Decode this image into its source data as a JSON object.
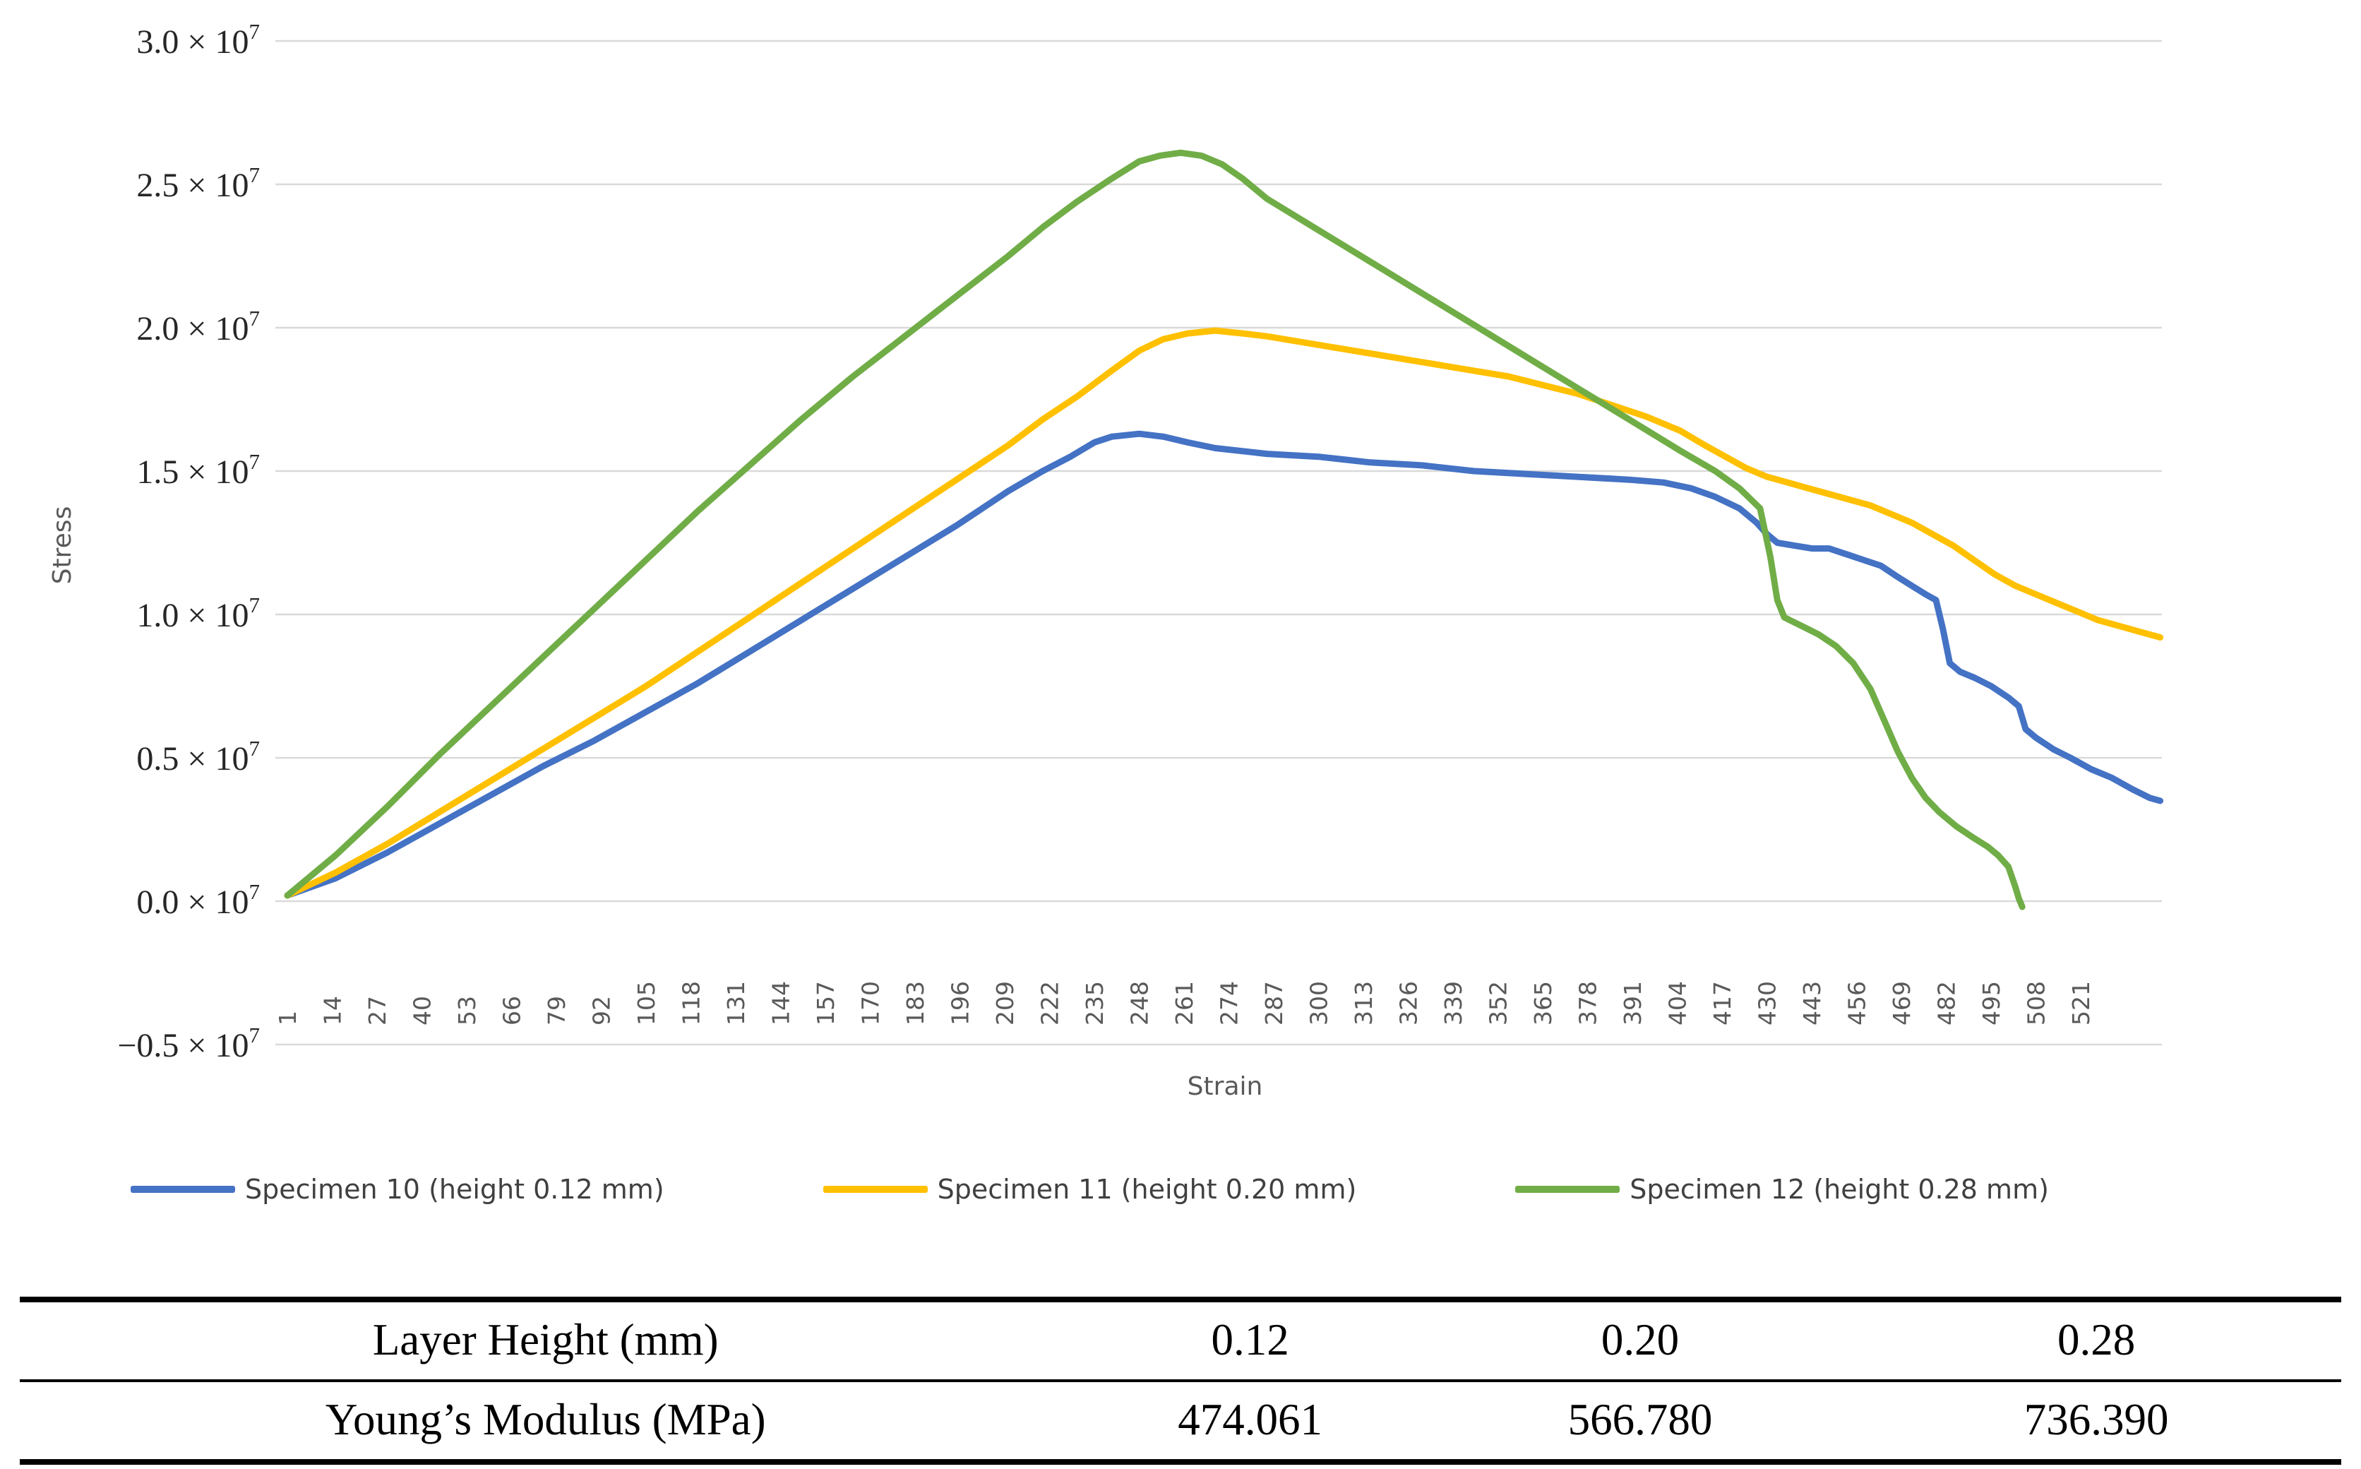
{
  "chart_data": {
    "type": "line",
    "title": "",
    "xlabel": "Strain",
    "ylabel": "Stress",
    "grid": true,
    "legend_position": "bottom",
    "y_unit_suffix": " × 10",
    "y_unit_exponent": "7",
    "ylim_e7": [
      -0.5,
      3.0
    ],
    "y_ticks": [
      {
        "label": "3.0",
        "value": 3.0
      },
      {
        "label": "2.5",
        "value": 2.5
      },
      {
        "label": "2.0",
        "value": 2.0
      },
      {
        "label": "1.5",
        "value": 1.5
      },
      {
        "label": "1.0",
        "value": 1.0
      },
      {
        "label": "0.5",
        "value": 0.5
      },
      {
        "label": "0.0",
        "value": 0.0
      },
      {
        "label": "−0.5",
        "value": -0.5
      }
    ],
    "x_tick_labels": [
      1,
      14,
      27,
      40,
      53,
      66,
      79,
      92,
      105,
      118,
      131,
      144,
      157,
      170,
      183,
      196,
      209,
      222,
      235,
      248,
      261,
      274,
      287,
      300,
      313,
      326,
      339,
      352,
      365,
      378,
      391,
      404,
      417,
      430,
      443,
      456,
      469,
      482,
      495,
      508,
      521
    ],
    "x_tick_step": 13,
    "x_max_category": 544,
    "grid_color": "#d9d9d9",
    "series": [
      {
        "name": "Specimen 10 (height 0.12 mm)",
        "color": "#4472C4",
        "points_e7": [
          [
            1,
            0.02
          ],
          [
            15,
            0.08
          ],
          [
            30,
            0.17
          ],
          [
            45,
            0.27
          ],
          [
            60,
            0.37
          ],
          [
            75,
            0.47
          ],
          [
            90,
            0.56
          ],
          [
            105,
            0.66
          ],
          [
            120,
            0.76
          ],
          [
            135,
            0.87
          ],
          [
            150,
            0.98
          ],
          [
            165,
            1.09
          ],
          [
            180,
            1.2
          ],
          [
            195,
            1.31
          ],
          [
            210,
            1.43
          ],
          [
            220,
            1.5
          ],
          [
            228,
            1.55
          ],
          [
            235,
            1.6
          ],
          [
            240,
            1.62
          ],
          [
            248,
            1.63
          ],
          [
            255,
            1.62
          ],
          [
            262,
            1.6
          ],
          [
            270,
            1.58
          ],
          [
            285,
            1.56
          ],
          [
            300,
            1.55
          ],
          [
            315,
            1.53
          ],
          [
            330,
            1.52
          ],
          [
            345,
            1.5
          ],
          [
            360,
            1.49
          ],
          [
            375,
            1.48
          ],
          [
            390,
            1.47
          ],
          [
            400,
            1.46
          ],
          [
            408,
            1.44
          ],
          [
            415,
            1.41
          ],
          [
            422,
            1.37
          ],
          [
            427,
            1.32
          ],
          [
            430,
            1.28
          ],
          [
            433,
            1.25
          ],
          [
            438,
            1.24
          ],
          [
            443,
            1.23
          ],
          [
            448,
            1.23
          ],
          [
            453,
            1.21
          ],
          [
            458,
            1.19
          ],
          [
            463,
            1.17
          ],
          [
            468,
            1.13
          ],
          [
            472,
            1.1
          ],
          [
            476,
            1.07
          ],
          [
            479,
            1.05
          ],
          [
            481,
            0.95
          ],
          [
            483,
            0.83
          ],
          [
            486,
            0.8
          ],
          [
            490,
            0.78
          ],
          [
            495,
            0.75
          ],
          [
            500,
            0.71
          ],
          [
            503,
            0.68
          ],
          [
            505,
            0.6
          ],
          [
            508,
            0.57
          ],
          [
            513,
            0.53
          ],
          [
            518,
            0.5
          ],
          [
            524,
            0.46
          ],
          [
            530,
            0.43
          ],
          [
            536,
            0.39
          ],
          [
            541,
            0.36
          ],
          [
            544,
            0.35
          ]
        ]
      },
      {
        "name": "Specimen 11 (height 0.20 mm)",
        "color": "#FFC000",
        "points_e7": [
          [
            1,
            0.02
          ],
          [
            15,
            0.1
          ],
          [
            30,
            0.2
          ],
          [
            45,
            0.31
          ],
          [
            60,
            0.42
          ],
          [
            75,
            0.53
          ],
          [
            90,
            0.64
          ],
          [
            105,
            0.75
          ],
          [
            120,
            0.87
          ],
          [
            135,
            0.99
          ],
          [
            150,
            1.11
          ],
          [
            165,
            1.23
          ],
          [
            180,
            1.35
          ],
          [
            195,
            1.47
          ],
          [
            210,
            1.59
          ],
          [
            220,
            1.68
          ],
          [
            230,
            1.76
          ],
          [
            240,
            1.85
          ],
          [
            248,
            1.92
          ],
          [
            255,
            1.96
          ],
          [
            262,
            1.98
          ],
          [
            270,
            1.99
          ],
          [
            278,
            1.98
          ],
          [
            285,
            1.97
          ],
          [
            295,
            1.95
          ],
          [
            305,
            1.93
          ],
          [
            315,
            1.91
          ],
          [
            325,
            1.89
          ],
          [
            335,
            1.87
          ],
          [
            345,
            1.85
          ],
          [
            355,
            1.83
          ],
          [
            365,
            1.8
          ],
          [
            375,
            1.77
          ],
          [
            385,
            1.73
          ],
          [
            395,
            1.69
          ],
          [
            405,
            1.64
          ],
          [
            412,
            1.59
          ],
          [
            418,
            1.55
          ],
          [
            424,
            1.51
          ],
          [
            430,
            1.48
          ],
          [
            436,
            1.46
          ],
          [
            442,
            1.44
          ],
          [
            448,
            1.42
          ],
          [
            454,
            1.4
          ],
          [
            460,
            1.38
          ],
          [
            466,
            1.35
          ],
          [
            472,
            1.32
          ],
          [
            478,
            1.28
          ],
          [
            484,
            1.24
          ],
          [
            490,
            1.19
          ],
          [
            496,
            1.14
          ],
          [
            502,
            1.1
          ],
          [
            508,
            1.07
          ],
          [
            514,
            1.04
          ],
          [
            520,
            1.01
          ],
          [
            526,
            0.98
          ],
          [
            532,
            0.96
          ],
          [
            538,
            0.94
          ],
          [
            544,
            0.92
          ]
        ]
      },
      {
        "name": "Specimen 12 (height 0.28 mm)",
        "color": "#70AD47",
        "points_e7": [
          [
            1,
            0.02
          ],
          [
            15,
            0.16
          ],
          [
            30,
            0.33
          ],
          [
            45,
            0.51
          ],
          [
            60,
            0.68
          ],
          [
            75,
            0.85
          ],
          [
            90,
            1.02
          ],
          [
            105,
            1.19
          ],
          [
            120,
            1.36
          ],
          [
            135,
            1.52
          ],
          [
            150,
            1.68
          ],
          [
            165,
            1.83
          ],
          [
            180,
            1.97
          ],
          [
            195,
            2.11
          ],
          [
            210,
            2.25
          ],
          [
            220,
            2.35
          ],
          [
            230,
            2.44
          ],
          [
            240,
            2.52
          ],
          [
            248,
            2.58
          ],
          [
            254,
            2.6
          ],
          [
            260,
            2.61
          ],
          [
            266,
            2.6
          ],
          [
            272,
            2.57
          ],
          [
            278,
            2.52
          ],
          [
            285,
            2.45
          ],
          [
            300,
            2.34
          ],
          [
            315,
            2.23
          ],
          [
            330,
            2.12
          ],
          [
            345,
            2.01
          ],
          [
            360,
            1.9
          ],
          [
            375,
            1.79
          ],
          [
            390,
            1.68
          ],
          [
            405,
            1.57
          ],
          [
            415,
            1.5
          ],
          [
            422,
            1.44
          ],
          [
            428,
            1.37
          ],
          [
            431,
            1.2
          ],
          [
            433,
            1.05
          ],
          [
            435,
            0.99
          ],
          [
            440,
            0.96
          ],
          [
            445,
            0.93
          ],
          [
            450,
            0.89
          ],
          [
            455,
            0.83
          ],
          [
            460,
            0.74
          ],
          [
            464,
            0.63
          ],
          [
            468,
            0.52
          ],
          [
            472,
            0.43
          ],
          [
            476,
            0.36
          ],
          [
            480,
            0.31
          ],
          [
            485,
            0.26
          ],
          [
            490,
            0.22
          ],
          [
            494,
            0.19
          ],
          [
            497,
            0.16
          ],
          [
            500,
            0.12
          ],
          [
            502,
            0.05
          ],
          [
            503,
            0.01
          ],
          [
            504,
            -0.02
          ]
        ]
      }
    ]
  },
  "table": {
    "rows": [
      {
        "label": "Layer Height (mm)",
        "values": [
          "0.12",
          "0.20",
          "0.28"
        ]
      },
      {
        "label": "Young’s Modulus (MPa)",
        "values": [
          "474.061",
          "566.780",
          "736.390"
        ]
      }
    ]
  }
}
